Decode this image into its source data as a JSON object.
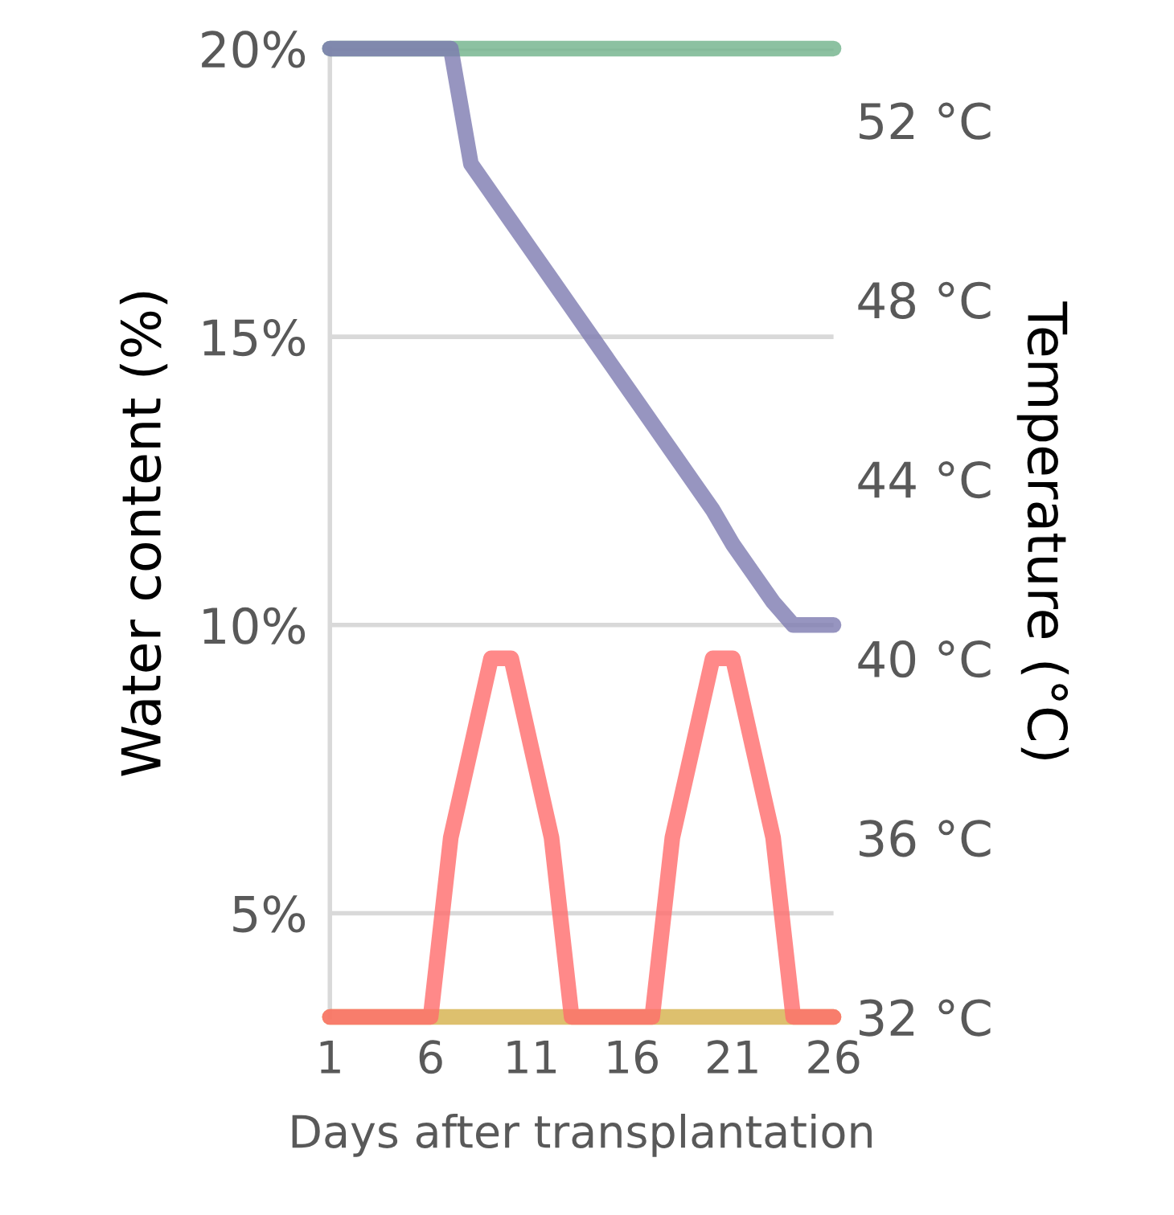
{
  "chart_data": {
    "type": "line",
    "xlabel": "Days after transplantation",
    "ylabel": "Water content (%)",
    "y2label": "Temperature (°C)",
    "x": [
      1,
      2,
      3,
      4,
      5,
      6,
      7,
      8,
      9,
      10,
      11,
      12,
      13,
      14,
      15,
      16,
      17,
      18,
      19,
      20,
      21,
      22,
      23,
      24,
      25,
      26
    ],
    "series": [
      {
        "color": "#6fb18a",
        "values": [
          20,
          20,
          20,
          20,
          20,
          20,
          20,
          20,
          20,
          20,
          20,
          20,
          20,
          20,
          20,
          20,
          20,
          20,
          20,
          20,
          20,
          20,
          20,
          20,
          20,
          20
        ]
      },
      {
        "color": "#7d7bb0",
        "values": [
          20,
          20,
          20,
          20,
          20,
          20,
          20,
          18,
          17.5,
          17,
          16.5,
          16,
          15.5,
          15,
          14.5,
          14,
          13.5,
          13,
          12.5,
          12,
          11.4,
          10.9,
          10.4,
          10,
          10,
          10
        ]
      },
      {
        "color": "#d4b04a",
        "axis": "y2",
        "values": [
          32,
          32,
          32,
          32,
          32,
          32,
          32,
          32,
          32,
          32,
          32,
          32,
          32,
          32,
          32,
          32,
          32,
          32,
          32,
          32,
          32,
          32,
          32,
          32,
          32,
          32
        ]
      },
      {
        "color": "#ff6b6b",
        "axis": "y2",
        "values": [
          32,
          32,
          32,
          32,
          32,
          32,
          36,
          38,
          40,
          40,
          38,
          36,
          32,
          32,
          32,
          32,
          32,
          36,
          38,
          40,
          40,
          38,
          36,
          32,
          32,
          32
        ]
      }
    ],
    "xlim": [
      1,
      26
    ],
    "xticks": [
      1,
      6,
      11,
      16,
      21,
      26
    ],
    "ylim": [
      3.2,
      20
    ],
    "yticks": [
      {
        "value": 5,
        "label": "5%"
      },
      {
        "value": 10,
        "label": "10%"
      },
      {
        "value": 15,
        "label": "15%"
      },
      {
        "value": 20,
        "label": "20%"
      }
    ],
    "y2lim": [
      32,
      53.6
    ],
    "y2ticks": [
      {
        "value": 32,
        "label": "32 °C"
      },
      {
        "value": 36,
        "label": "36 °C"
      },
      {
        "value": 40,
        "label": "40 °C"
      },
      {
        "value": 44,
        "label": "44 °C"
      },
      {
        "value": 48,
        "label": "48 °C"
      },
      {
        "value": 52,
        "label": "52 °C"
      }
    ],
    "grid": "y",
    "marker": "none",
    "line_style": "solid"
  }
}
